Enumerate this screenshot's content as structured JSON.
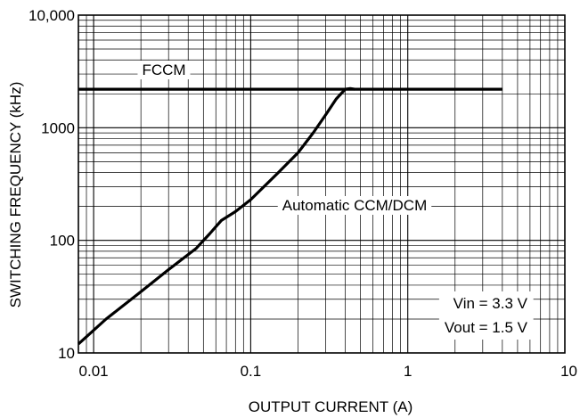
{
  "chart_data": {
    "type": "line",
    "title": "",
    "xlabel": "OUTPUT CURRENT (A)",
    "ylabel": "SWITCHING FREQUENCY (kHz)",
    "xscale": "log",
    "yscale": "log",
    "xlim": [
      0.008,
      10
    ],
    "ylim": [
      10,
      10000
    ],
    "grid": true,
    "x_tick_values": [
      0.01,
      0.1,
      1,
      10
    ],
    "x_tick_labels": [
      "0.01",
      "0.1",
      "1",
      "10"
    ],
    "y_tick_values": [
      10,
      100,
      1000,
      10000
    ],
    "y_tick_labels": [
      "10",
      "100",
      "1000",
      "10,000"
    ],
    "series": [
      {
        "name": "FCCM",
        "x": [
          0.008,
          0.4,
          4
        ],
        "y": [
          2200,
          2200,
          2200
        ]
      },
      {
        "name": "Automatic CCM/DCM",
        "x": [
          0.008,
          0.012,
          0.02,
          0.03,
          0.045,
          0.055,
          0.065,
          0.08,
          0.1,
          0.15,
          0.2,
          0.25,
          0.3,
          0.35,
          0.4,
          0.43,
          0.46
        ],
        "y": [
          12,
          20,
          35,
          55,
          85,
          115,
          150,
          180,
          230,
          400,
          600,
          900,
          1300,
          1800,
          2200,
          2230,
          2200
        ]
      }
    ],
    "annotations": [
      {
        "text": "FCCM",
        "series": "FCCM"
      },
      {
        "text": "Automatic CCM/DCM",
        "series": "Automatic CCM/DCM"
      }
    ],
    "conditions": [
      "Vin = 3.3 V",
      "Vout = 1.5 V"
    ]
  }
}
